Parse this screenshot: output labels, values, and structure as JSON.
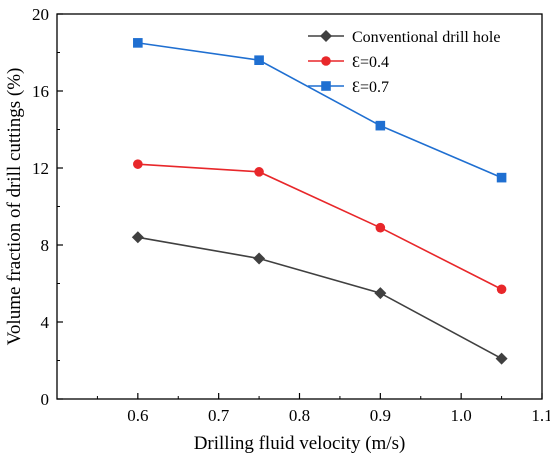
{
  "chart_data": {
    "type": "line",
    "xlabel": "Drilling fluid velocity (m/s)",
    "ylabel": "Volume fraction of drill cuttings (%)",
    "xlim": [
      0.5,
      1.1
    ],
    "ylim": [
      0,
      20
    ],
    "x_ticks": [
      "0.6",
      "0.7",
      "0.8",
      "0.9",
      "1.0",
      "1.1"
    ],
    "y_ticks": [
      "0",
      "4",
      "8",
      "12",
      "16",
      "20"
    ],
    "x": [
      0.6,
      0.75,
      0.9,
      1.05
    ],
    "legend_position": "top-right",
    "grid": false,
    "series": [
      {
        "name": "Conventional drill hole",
        "values": [
          8.4,
          7.3,
          5.5,
          2.1
        ],
        "color": "#404040",
        "marker": "diamond"
      },
      {
        "name": "Ɛ=0.4",
        "values": [
          12.2,
          11.8,
          8.9,
          5.7
        ],
        "color": "#e8272a",
        "marker": "circle"
      },
      {
        "name": "Ɛ=0.7",
        "values": [
          18.5,
          17.6,
          14.2,
          11.5
        ],
        "color": "#1f6fd1",
        "marker": "square"
      }
    ]
  }
}
